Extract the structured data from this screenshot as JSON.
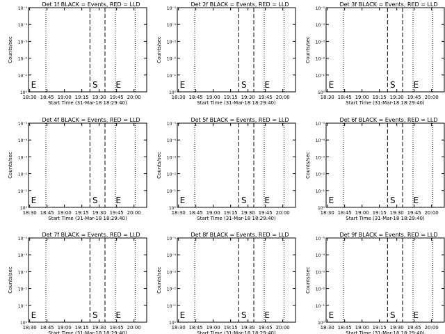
{
  "chart_data": [
    {
      "type": "line",
      "title": "Det 1f BLACK = Events, RED = LLD",
      "xlabel": "Start Time (31-Mar-18 18:29:40)",
      "ylabel": "Counts/sec",
      "xticks": [
        "18:30",
        "18:45",
        "19:00",
        "19:15",
        "19:30",
        "19:45",
        "20:00"
      ],
      "yticks": [
        "10⁰",
        "10⁻¹",
        "10⁻²",
        "10⁻³",
        "10⁻⁴",
        "10⁻⁵"
      ],
      "dotted_lines": [
        "18:44",
        "19:44",
        "20:01"
      ],
      "dashed_lines": [
        "19:22",
        "19:35"
      ],
      "markers": [
        {
          "label": "E",
          "x": "18:30"
        },
        {
          "label": "S",
          "x": "19:23"
        },
        {
          "label": "E",
          "x": "19:43"
        }
      ],
      "series": []
    },
    {
      "type": "line",
      "title": "Det 2f BLACK = Events, RED = LLD",
      "xlabel": "Start Time (31-Mar-18 18:29:40)",
      "ylabel": "Counts/sec",
      "xticks": [
        "18:30",
        "18:45",
        "19:00",
        "19:15",
        "19:30",
        "19:45",
        "20:00"
      ],
      "yticks": [
        "10⁰",
        "10⁻¹",
        "10⁻²",
        "10⁻³",
        "10⁻⁴",
        "10⁻⁵"
      ],
      "dotted_lines": [
        "18:44",
        "19:44",
        "20:01"
      ],
      "dashed_lines": [
        "19:22",
        "19:35"
      ],
      "markers": [
        {
          "label": "E",
          "x": "18:30"
        },
        {
          "label": "S",
          "x": "19:23"
        },
        {
          "label": "E",
          "x": "19:43"
        }
      ],
      "series": []
    },
    {
      "type": "line",
      "title": "Det 3f BLACK = Events, RED = LLD",
      "xlabel": "Start Time (31-Mar-18 18:29:40)",
      "ylabel": "Counts/sec",
      "xticks": [
        "18:30",
        "18:45",
        "19:00",
        "19:15",
        "19:30",
        "19:45",
        "20:00"
      ],
      "yticks": [
        "10⁰",
        "10⁻¹",
        "10⁻²",
        "10⁻³",
        "10⁻⁴",
        "10⁻⁵"
      ],
      "dotted_lines": [
        "18:44",
        "19:44",
        "20:01"
      ],
      "dashed_lines": [
        "19:22",
        "19:35"
      ],
      "markers": [
        {
          "label": "E",
          "x": "18:30"
        },
        {
          "label": "S",
          "x": "19:23"
        },
        {
          "label": "E",
          "x": "19:43"
        }
      ],
      "series": []
    },
    {
      "type": "line",
      "title": "Det 4f BLACK = Events, RED = LLD",
      "xlabel": "Start Time (31-Mar-18 18:29:40)",
      "ylabel": "Counts/sec",
      "xticks": [
        "18:30",
        "18:45",
        "19:00",
        "19:15",
        "19:30",
        "19:45",
        "20:00"
      ],
      "yticks": [
        "10⁰",
        "10⁻¹",
        "10⁻²",
        "10⁻³",
        "10⁻⁴",
        "10⁻⁵"
      ],
      "dotted_lines": [
        "18:44",
        "19:44",
        "20:01"
      ],
      "dashed_lines": [
        "19:22",
        "19:35"
      ],
      "markers": [
        {
          "label": "E",
          "x": "18:30"
        },
        {
          "label": "S",
          "x": "19:23"
        },
        {
          "label": "E",
          "x": "19:43"
        }
      ],
      "series": []
    },
    {
      "type": "line",
      "title": "Det 5f BLACK = Events, RED = LLD",
      "xlabel": "Start Time (31-Mar-18 18:29:40)",
      "ylabel": "Counts/sec",
      "xticks": [
        "18:30",
        "18:45",
        "19:00",
        "19:15",
        "19:30",
        "19:45",
        "20:00"
      ],
      "yticks": [
        "10⁰",
        "10⁻¹",
        "10⁻²",
        "10⁻³",
        "10⁻⁴",
        "10⁻⁵"
      ],
      "dotted_lines": [
        "18:44",
        "19:44",
        "20:01"
      ],
      "dashed_lines": [
        "19:22",
        "19:35"
      ],
      "markers": [
        {
          "label": "E",
          "x": "18:30"
        },
        {
          "label": "S",
          "x": "19:23"
        },
        {
          "label": "E",
          "x": "19:43"
        }
      ],
      "series": []
    },
    {
      "type": "line",
      "title": "Det 6f BLACK = Events, RED = LLD",
      "xlabel": "Start Time (31-Mar-18 18:29:40)",
      "ylabel": "Counts/sec",
      "xticks": [
        "18:30",
        "18:45",
        "19:00",
        "19:15",
        "19:30",
        "19:45",
        "20:00"
      ],
      "yticks": [
        "10⁰",
        "10⁻¹",
        "10⁻²",
        "10⁻³",
        "10⁻⁴",
        "10⁻⁵"
      ],
      "dotted_lines": [
        "18:44",
        "19:44",
        "20:01"
      ],
      "dashed_lines": [
        "19:22",
        "19:35"
      ],
      "markers": [
        {
          "label": "E",
          "x": "18:30"
        },
        {
          "label": "S",
          "x": "19:23"
        },
        {
          "label": "E",
          "x": "19:43"
        }
      ],
      "series": []
    },
    {
      "type": "line",
      "title": "Det 7f BLACK = Events, RED = LLD",
      "xlabel": "Start Time (31-Mar-18 18:29:40)",
      "ylabel": "Counts/sec",
      "xticks": [
        "18:30",
        "18:45",
        "19:00",
        "19:15",
        "19:30",
        "19:45",
        "20:00"
      ],
      "yticks": [
        "10⁰",
        "10⁻¹",
        "10⁻²",
        "10⁻³",
        "10⁻⁴",
        "10⁻⁵"
      ],
      "dotted_lines": [
        "18:44",
        "19:44",
        "20:01"
      ],
      "dashed_lines": [
        "19:22",
        "19:35"
      ],
      "markers": [
        {
          "label": "E",
          "x": "18:30"
        },
        {
          "label": "S",
          "x": "19:23"
        },
        {
          "label": "E",
          "x": "19:43"
        }
      ],
      "series": []
    },
    {
      "type": "line",
      "title": "Det 8f BLACK = Events, RED = LLD",
      "xlabel": "Start Time (31-Mar-18 18:29:40)",
      "ylabel": "Counts/sec",
      "xticks": [
        "18:30",
        "18:45",
        "19:00",
        "19:15",
        "19:30",
        "19:45",
        "20:00"
      ],
      "yticks": [
        "10⁰",
        "10⁻¹",
        "10⁻²",
        "10⁻³",
        "10⁻⁴",
        "10⁻⁵"
      ],
      "dotted_lines": [
        "18:44",
        "19:44",
        "20:01"
      ],
      "dashed_lines": [
        "19:22",
        "19:35"
      ],
      "markers": [
        {
          "label": "E",
          "x": "18:30"
        },
        {
          "label": "S",
          "x": "19:23"
        },
        {
          "label": "E",
          "x": "19:43"
        }
      ],
      "series": []
    },
    {
      "type": "line",
      "title": "Det 9f BLACK = Events, RED = LLD",
      "xlabel": "Start Time (31-Mar-18 18:29:40)",
      "ylabel": "Counts/sec",
      "xticks": [
        "18:30",
        "18:45",
        "19:00",
        "19:15",
        "19:30",
        "19:45",
        "20:00"
      ],
      "yticks": [
        "10⁰",
        "10⁻¹",
        "10⁻²",
        "10⁻³",
        "10⁻⁴",
        "10⁻⁵"
      ],
      "dotted_lines": [
        "18:44",
        "19:44",
        "20:01"
      ],
      "dashed_lines": [
        "19:22",
        "19:35"
      ],
      "markers": [
        {
          "label": "E",
          "x": "18:30"
        },
        {
          "label": "S",
          "x": "19:23"
        },
        {
          "label": "E",
          "x": "19:43"
        }
      ],
      "series": []
    }
  ],
  "style": {
    "background": "#ffffff",
    "axis_color": "#000000",
    "events_color": "#000000",
    "lld_color": "#ff0000"
  }
}
